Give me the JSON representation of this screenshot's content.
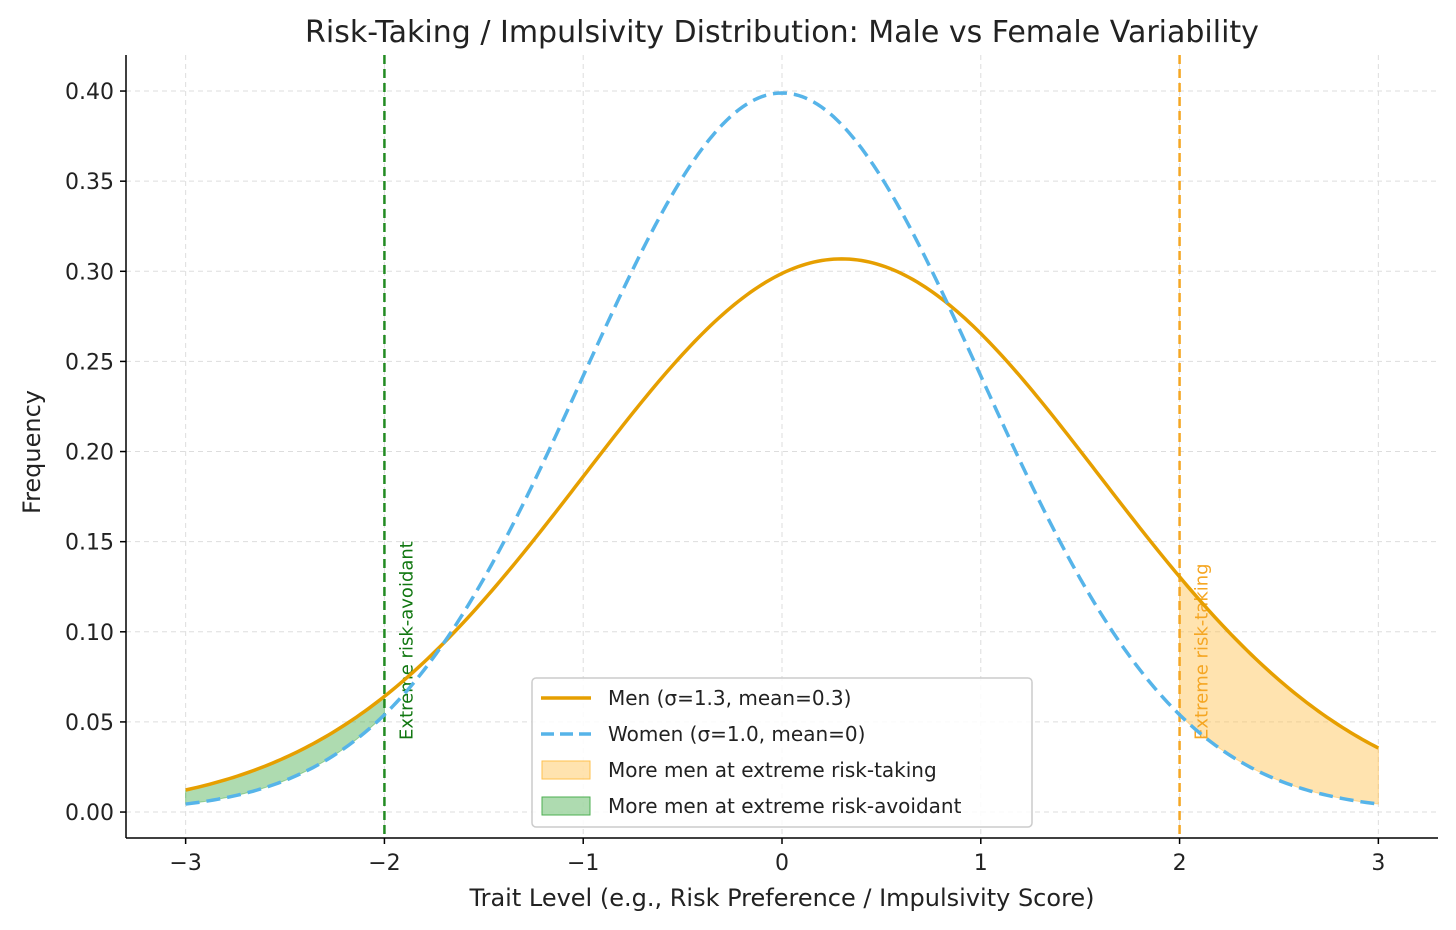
{
  "chart_data": {
    "type": "line",
    "title": "Risk-Taking / Impulsivity Distribution: Male vs Female Variability",
    "xlabel": "Trait Level (e.g., Risk Preference / Impulsivity Score)",
    "ylabel": "Frequency",
    "xlim": [
      -3.3,
      3.3
    ],
    "ylim": [
      -0.0144,
      0.42
    ],
    "x_range": [
      -3,
      3
    ],
    "xticks": [
      -3,
      -2,
      -1,
      0,
      1,
      2,
      3
    ],
    "xtick_labels": [
      "−3",
      "−2",
      "−1",
      "0",
      "1",
      "2",
      "3"
    ],
    "yticks": [
      0,
      0.05,
      0.1,
      0.15,
      0.2,
      0.25,
      0.3,
      0.35,
      0.4
    ],
    "ytick_labels": [
      "0.00",
      "0.05",
      "0.10",
      "0.15",
      "0.20",
      "0.25",
      "0.30",
      "0.35",
      "0.40"
    ],
    "grid": true,
    "series": [
      {
        "name": "Men (σ=1.3, mean=0.3)",
        "distribution": "normal",
        "mean": 0.3,
        "sigma": 1.3,
        "color": "#E69F00",
        "style": "solid"
      },
      {
        "name": "Women (σ=1.0, mean=0)",
        "distribution": "normal",
        "mean": 0,
        "sigma": 1.0,
        "color": "#56B4E9",
        "style": "dashed"
      }
    ],
    "fills": [
      {
        "name": "More men at extreme risk-taking",
        "x_from": 2,
        "x_to": 3,
        "color": "#FFC04D"
      },
      {
        "name": "More men at extreme risk-avoidant",
        "x_from": -3,
        "x_to": -2,
        "color": "#4CAF50"
      }
    ],
    "vlines": [
      {
        "x": -2,
        "color": "#228B22",
        "label": "Extreme risk-avoidant",
        "label_color": "#117711",
        "label_y": 0.04
      },
      {
        "x": 2,
        "color": "#F5A623",
        "label": "Extreme risk-taking",
        "label_color": "#F5A623",
        "label_y": 0.04
      }
    ],
    "legend_position": "lower-center"
  }
}
